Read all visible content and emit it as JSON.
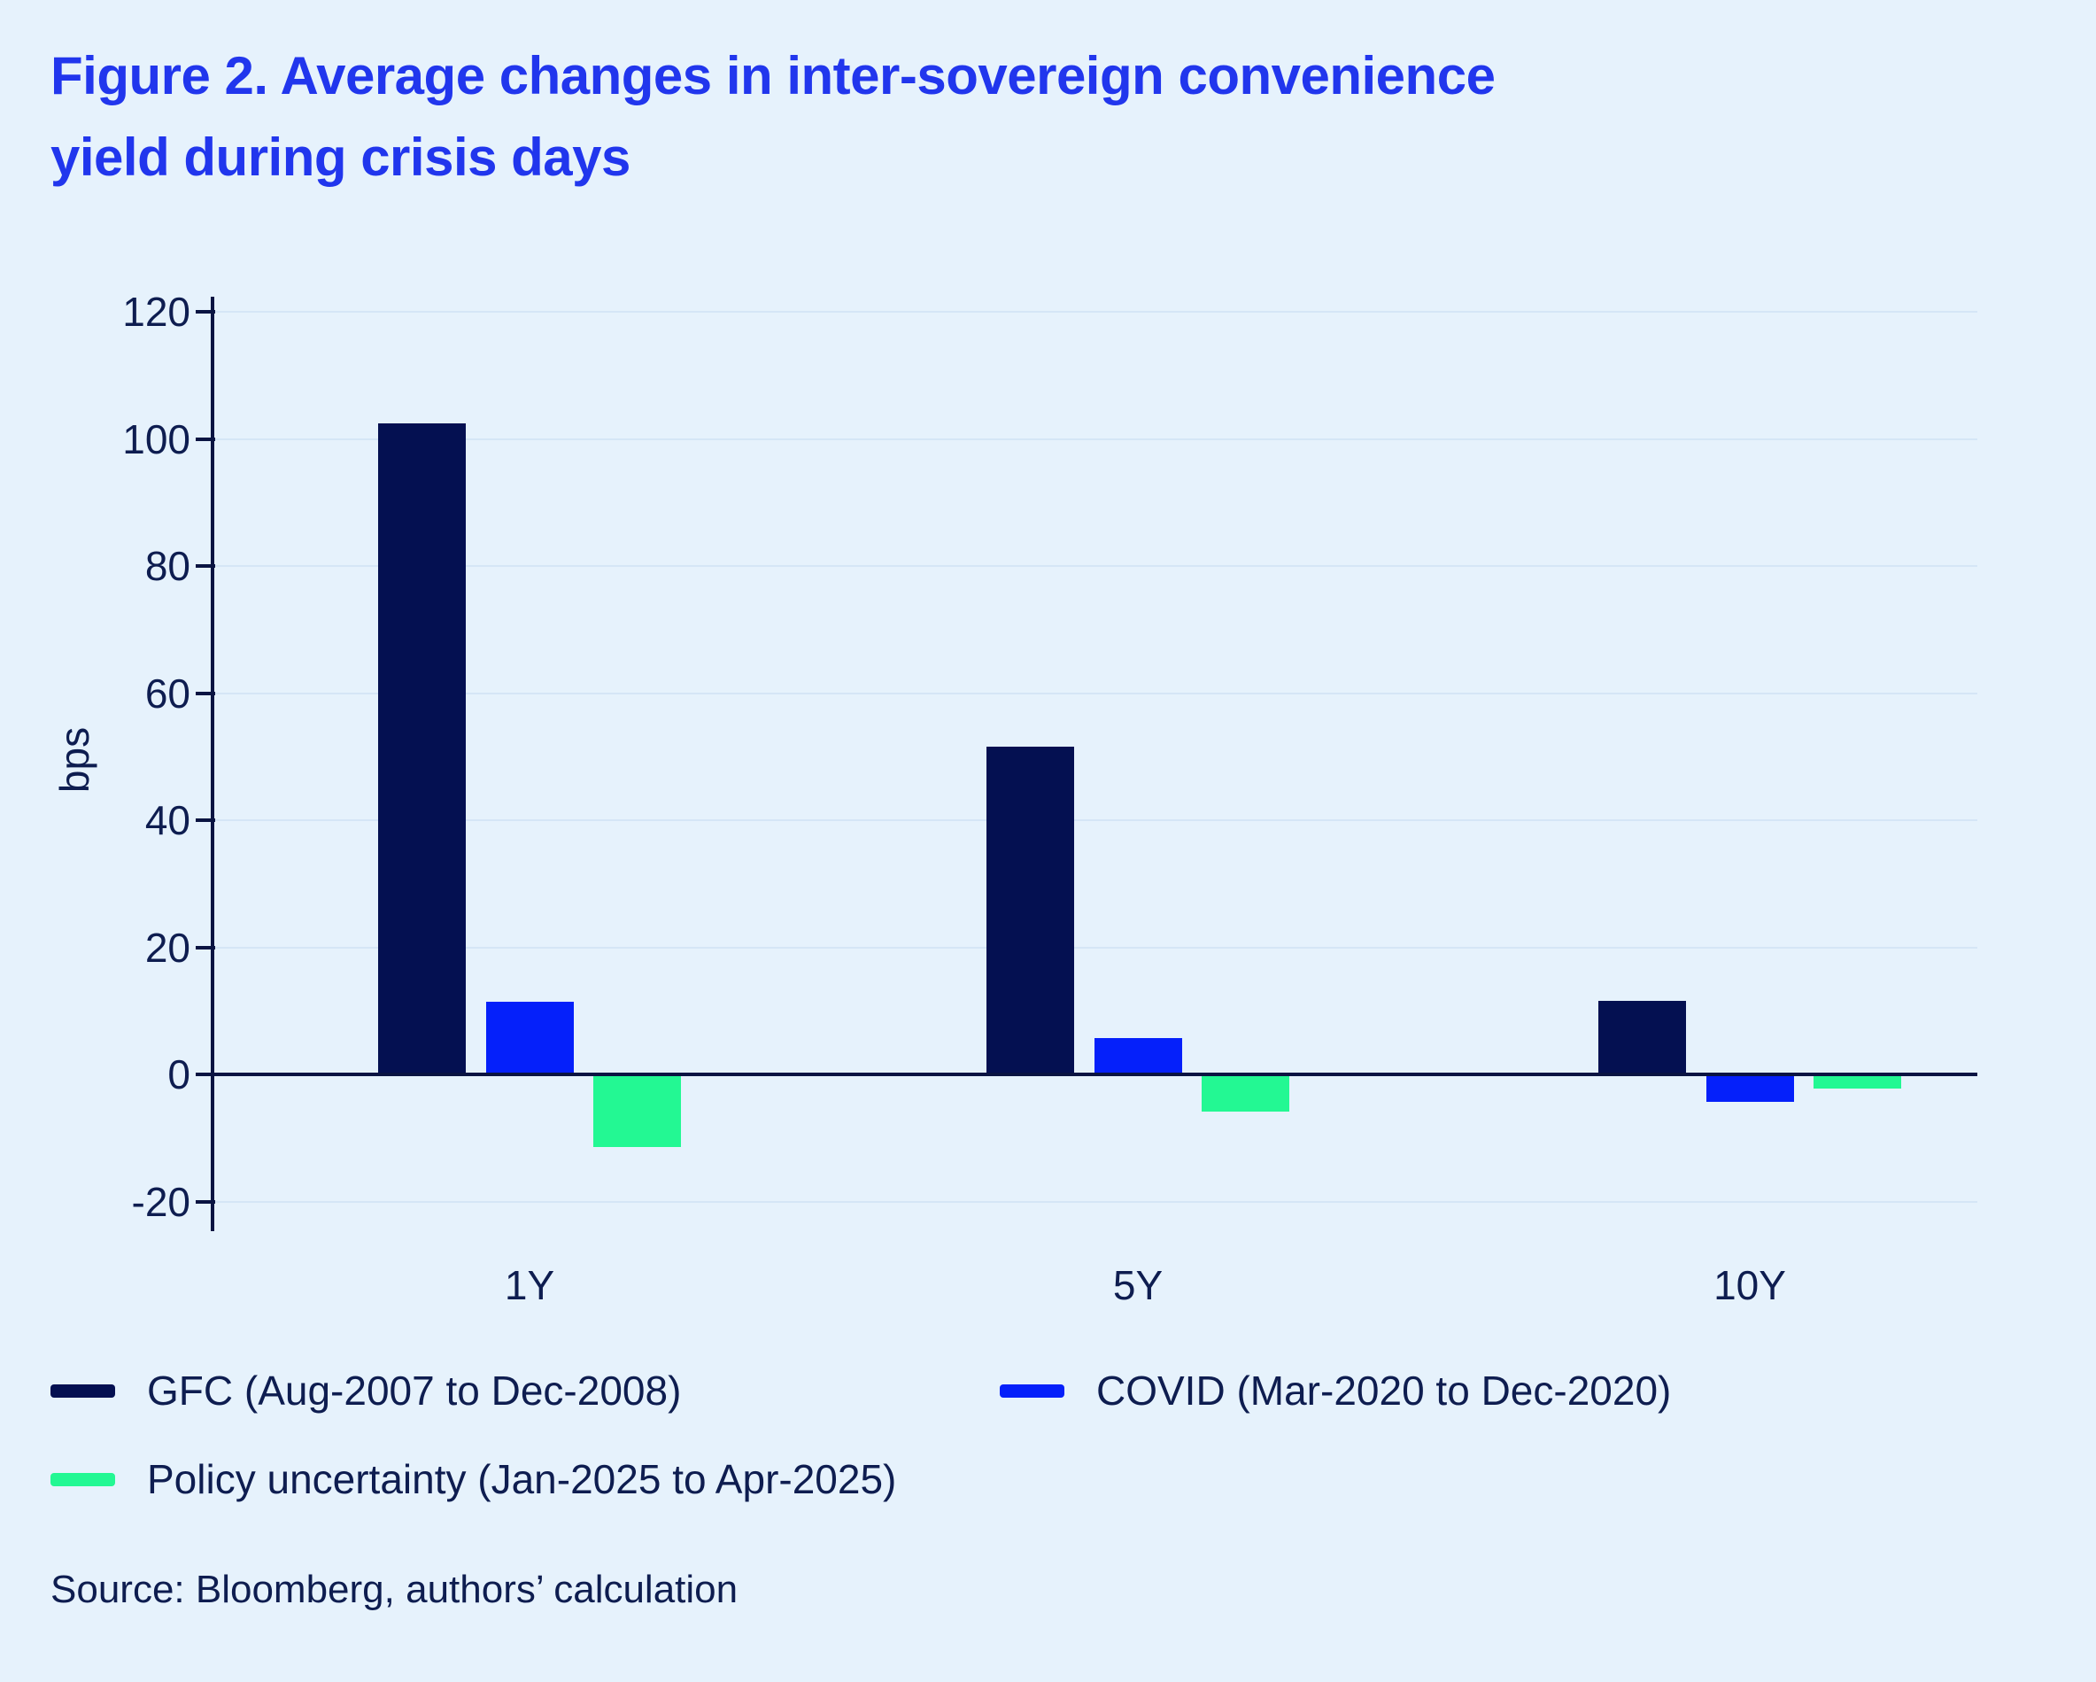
{
  "title": {
    "line1": "Figure 2. Average changes in inter-sovereign convenience",
    "line2": "yield during crisis days"
  },
  "chart_data": {
    "type": "bar",
    "categories": [
      "1Y",
      "5Y",
      "10Y"
    ],
    "series": [
      {
        "name": "GFC (Aug-2007 to Dec-2008)",
        "color": "#041051",
        "values": [
          102.5,
          51.5,
          11.5
        ]
      },
      {
        "name": "COVID (Mar-2020 to Dec-2020)",
        "color": "#0520fa",
        "values": [
          11.4,
          5.7,
          -4.3
        ]
      },
      {
        "name": "Policy uncertainty (Jan-2025 to Apr-2025)",
        "color": "#23f893",
        "values": [
          -11.4,
          -5.8,
          -2.2
        ]
      }
    ],
    "ylabel": "bps",
    "yticks": [
      120,
      100,
      80,
      60,
      40,
      20,
      0,
      -20
    ],
    "ylim": [
      -25,
      122
    ],
    "grid": true,
    "legend_position": "bottom"
  },
  "source": "Source: Bloomberg, authors’ calculation",
  "colors": {
    "background": "#e6f2fc",
    "gridline": "#d5e6f6",
    "axis": "#0a1442",
    "title": "#2136ed",
    "text": "#0e1d50"
  }
}
